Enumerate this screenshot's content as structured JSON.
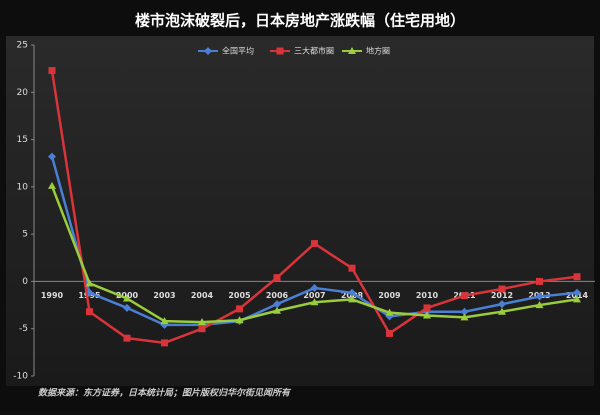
{
  "chart_data": {
    "type": "line",
    "title": "楼市泡沫破裂后，日本房地产涨跌幅（住宅用地）",
    "source": "数据来源：东方证券，日本统计局；图片版权归华尔街见闻所有",
    "categories": [
      "1990",
      "1995",
      "2000",
      "2003",
      "2004",
      "2005",
      "2006",
      "2007",
      "2008",
      "2009",
      "2010",
      "2011",
      "2012",
      "2013",
      "2014"
    ],
    "series": [
      {
        "name": "全国平均",
        "color": "#4a7fd4",
        "values": [
          13.2,
          -1.2,
          -2.8,
          -4.6,
          -4.6,
          -4.2,
          -2.4,
          -0.7,
          -1.2,
          -3.7,
          -3.2,
          -3.2,
          -2.4,
          -1.6,
          -1.2
        ]
      },
      {
        "name": "三大都市圈",
        "color": "#d9343a",
        "values": [
          22.3,
          -3.2,
          -6.0,
          -6.5,
          -5.0,
          -2.9,
          0.4,
          4.0,
          1.4,
          -5.5,
          -2.8,
          -1.5,
          -0.8,
          0.0,
          0.5
        ]
      },
      {
        "name": "地方圈",
        "color": "#9acd3c",
        "values": [
          10.1,
          -0.2,
          -1.8,
          -4.2,
          -4.3,
          -4.1,
          -3.1,
          -2.2,
          -1.9,
          -3.3,
          -3.6,
          -3.8,
          -3.2,
          -2.5,
          -1.9
        ]
      }
    ],
    "ylim": [
      -10,
      25
    ],
    "yticks": [
      -10,
      -5,
      0,
      5,
      10,
      15,
      20,
      25
    ],
    "legend": "top"
  }
}
